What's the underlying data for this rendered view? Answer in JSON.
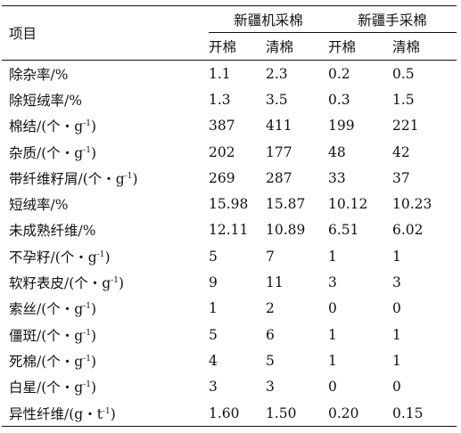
{
  "header": {
    "project_label": "项目",
    "group_machine": "新疆机采棉",
    "group_hand": "新疆手采棉",
    "sub_open": "开棉",
    "sub_clean": "清棉"
  },
  "rows": [
    {
      "label": "除杂率/%",
      "unit_sup": "",
      "v": [
        "1.1",
        "2.3",
        "0.2",
        "0.5"
      ]
    },
    {
      "label": "除短绒率/%",
      "unit_sup": "",
      "v": [
        "1.3",
        "3.5",
        "0.3",
        "1.5"
      ]
    },
    {
      "label": "棉结/(个・g",
      "unit_sup": "-1",
      "suffix": ")",
      "v": [
        "387",
        "411",
        "199",
        "221"
      ]
    },
    {
      "label": "杂质/(个・g",
      "unit_sup": "-1",
      "suffix": ")",
      "v": [
        "202",
        "177",
        "48",
        "42"
      ]
    },
    {
      "label": "带纤维籽屑/(个・g",
      "unit_sup": "-1",
      "suffix": ")",
      "v": [
        "269",
        "287",
        "33",
        "37"
      ]
    },
    {
      "label": "短绒率/%",
      "unit_sup": "",
      "v": [
        "15.98",
        "15.87",
        "10.12",
        "10.23"
      ]
    },
    {
      "label": "未成熟纤维/%",
      "unit_sup": "",
      "v": [
        "12.11",
        "10.89",
        "6.51",
        "6.02"
      ]
    },
    {
      "label": "不孕籽/(个・g",
      "unit_sup": "-1",
      "suffix": ")",
      "v": [
        "5",
        "7",
        "1",
        "1"
      ]
    },
    {
      "label": "软籽表皮/(个・g",
      "unit_sup": "-1",
      "suffix": ")",
      "v": [
        "9",
        "11",
        "3",
        "3"
      ]
    },
    {
      "label": "索丝/(个・g",
      "unit_sup": "-1",
      "suffix": ")",
      "v": [
        "1",
        "2",
        "0",
        "0"
      ]
    },
    {
      "label": "僵斑/(个・g",
      "unit_sup": "-1",
      "suffix": ")",
      "v": [
        "5",
        "6",
        "1",
        "1"
      ]
    },
    {
      "label": "死棉/(个・g",
      "unit_sup": "-1",
      "suffix": ")",
      "v": [
        "4",
        "5",
        "1",
        "1"
      ]
    },
    {
      "label": "白星/(个・g",
      "unit_sup": "-1",
      "suffix": ")",
      "v": [
        "3",
        "3",
        "0",
        "0"
      ]
    },
    {
      "label": "异性纤维/(g・t",
      "unit_sup": "-1",
      "suffix": ")",
      "v": [
        "1.60",
        "1.50",
        "0.20",
        "0.15"
      ]
    }
  ]
}
